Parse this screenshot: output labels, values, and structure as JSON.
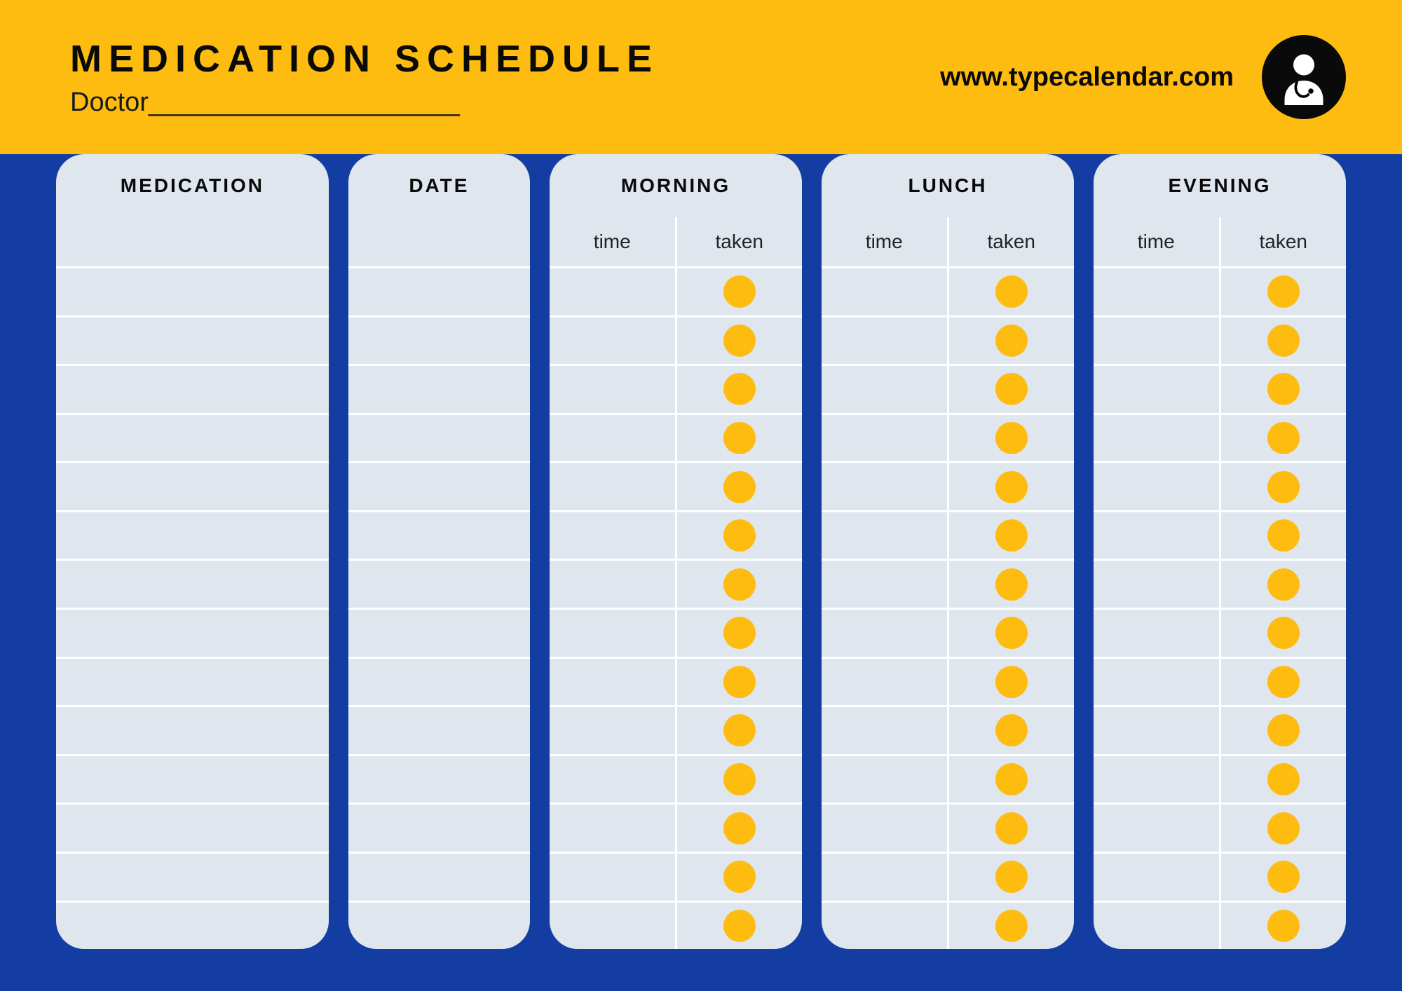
{
  "colors": {
    "header_bg": "#febc11",
    "body_bg": "#143da3",
    "panel_bg": "#dfe6ee",
    "dot": "#febc11",
    "text": "#0a0a0a"
  },
  "header": {
    "title": "MEDICATION SCHEDULE",
    "doctor_label": "Doctor_____________________",
    "website": "www.typecalendar.com"
  },
  "columns": {
    "medication": "MEDICATION",
    "date": "DATE",
    "periods": [
      {
        "label": "MORNING",
        "time": "time",
        "taken": "taken"
      },
      {
        "label": "LUNCH",
        "time": "time",
        "taken": "taken"
      },
      {
        "label": "EVENING",
        "time": "time",
        "taken": "taken"
      }
    ]
  },
  "row_count": 14
}
